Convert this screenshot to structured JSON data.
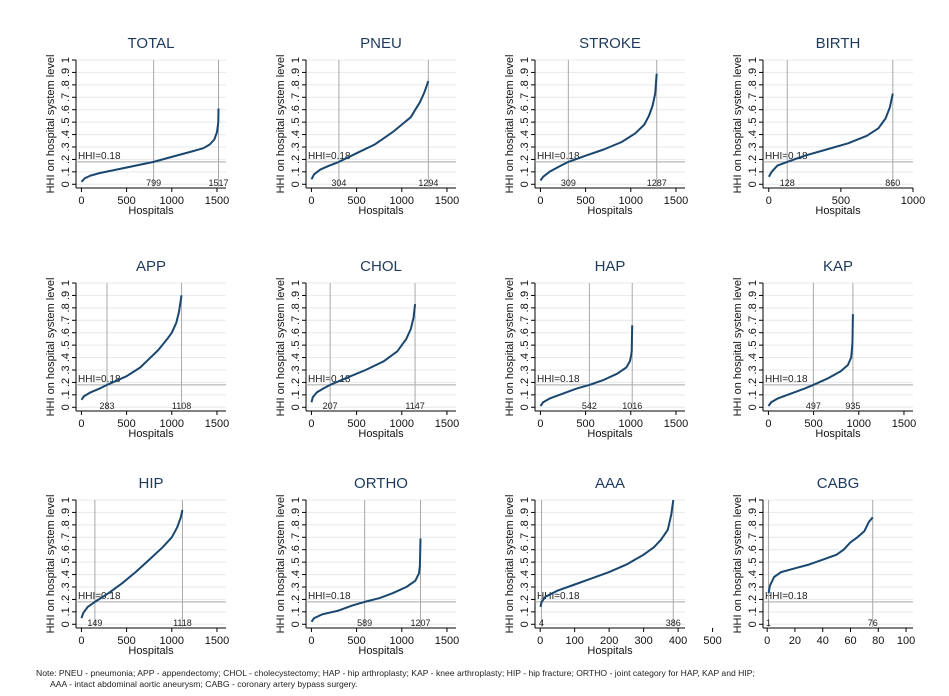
{
  "figure": {
    "note_line1": "Note: PNEU - pneumonia; APP - appendectomy; CHOL - cholecystectomy; HAP - hip arthroplasty; KAP - knee arthroplasty; HIP - hip fracture; ORTHO - joint category for HAP, KAP and HIP;",
    "note_line2": "AAA - intact abdominal aortic aneurysm; CABG - coronary artery bypass surgery."
  },
  "chart_data": [
    {
      "type": "line",
      "title": "TOTAL",
      "xlabel": "Hospitals",
      "ylabel": "HHI on hospital system level",
      "xlim": [
        -60,
        1600
      ],
      "ylim": [
        -0.03,
        1.0
      ],
      "xticks": [
        0,
        500,
        1000,
        1500
      ],
      "yticks": [
        0,
        0.1,
        0.2,
        0.3,
        0.4,
        0.5,
        0.6,
        0.7,
        0.8,
        0.9,
        1
      ],
      "ytick_labels": [
        "0",
        ".1",
        ".2",
        ".3",
        ".4",
        ".5",
        ".6",
        ".7",
        ".8",
        ".9",
        "1"
      ],
      "hline": {
        "y": 0.18,
        "label": "HHI=0.18"
      },
      "vlines": [
        {
          "x": 799,
          "label": "799"
        },
        {
          "x": 1517,
          "label": "1517"
        }
      ],
      "x": [
        1,
        40,
        100,
        200,
        400,
        600,
        799,
        1000,
        1200,
        1350,
        1420,
        1470,
        1500,
        1515,
        1517
      ],
      "y": [
        0.02,
        0.05,
        0.07,
        0.09,
        0.12,
        0.15,
        0.18,
        0.22,
        0.26,
        0.29,
        0.32,
        0.36,
        0.42,
        0.5,
        0.61
      ]
    },
    {
      "type": "line",
      "title": "PNEU",
      "xlabel": "Hospitals",
      "ylabel": "HHI on hospital system level",
      "xlim": [
        -60,
        1600
      ],
      "ylim": [
        -0.03,
        1.0
      ],
      "xticks": [
        0,
        500,
        1000,
        1500
      ],
      "yticks": [
        0,
        0.1,
        0.2,
        0.3,
        0.4,
        0.5,
        0.6,
        0.7,
        0.8,
        0.9,
        1
      ],
      "ytick_labels": [
        "0",
        ".1",
        ".2",
        ".3",
        ".4",
        ".5",
        ".6",
        ".7",
        ".8",
        ".9",
        "1"
      ],
      "hline": {
        "y": 0.18,
        "label": "HHI=0.18"
      },
      "vlines": [
        {
          "x": 304,
          "label": "304"
        },
        {
          "x": 1294,
          "label": "1294"
        }
      ],
      "x": [
        1,
        30,
        100,
        200,
        304,
        500,
        700,
        900,
        1000,
        1100,
        1150,
        1200,
        1250,
        1294
      ],
      "y": [
        0.04,
        0.08,
        0.12,
        0.15,
        0.18,
        0.25,
        0.32,
        0.42,
        0.48,
        0.54,
        0.6,
        0.66,
        0.74,
        0.83
      ]
    },
    {
      "type": "line",
      "title": "STROKE",
      "xlabel": "Hospitals",
      "ylabel": "HHI on hospital system level",
      "xlim": [
        -60,
        1600
      ],
      "ylim": [
        -0.03,
        1.0
      ],
      "xticks": [
        0,
        500,
        1000,
        1500
      ],
      "yticks": [
        0,
        0.1,
        0.2,
        0.3,
        0.4,
        0.5,
        0.6,
        0.7,
        0.8,
        0.9,
        1
      ],
      "ytick_labels": [
        "0",
        ".1",
        ".2",
        ".3",
        ".4",
        ".5",
        ".6",
        ".7",
        ".8",
        ".9",
        "1"
      ],
      "hline": {
        "y": 0.18,
        "label": "HHI=0.18"
      },
      "vlines": [
        {
          "x": 309,
          "label": "309"
        },
        {
          "x": 1287,
          "label": "1287"
        }
      ],
      "x": [
        1,
        30,
        100,
        200,
        309,
        500,
        700,
        900,
        1050,
        1150,
        1200,
        1240,
        1270,
        1287
      ],
      "y": [
        0.03,
        0.06,
        0.1,
        0.14,
        0.18,
        0.23,
        0.28,
        0.34,
        0.41,
        0.48,
        0.55,
        0.63,
        0.73,
        0.89
      ]
    },
    {
      "type": "line",
      "title": "BIRTH",
      "xlabel": "Hospitals",
      "ylabel": "HHI on hospital system level",
      "xlim": [
        -40,
        1000
      ],
      "ylim": [
        -0.03,
        1.0
      ],
      "xticks": [
        0,
        500,
        1000
      ],
      "yticks": [
        0,
        0.1,
        0.2,
        0.3,
        0.4,
        0.5,
        0.6,
        0.7,
        0.8,
        0.9,
        1
      ],
      "ytick_labels": [
        "0",
        ".1",
        ".2",
        ".3",
        ".4",
        ".5",
        ".6",
        ".7",
        ".8",
        ".9",
        "1"
      ],
      "hline": {
        "y": 0.18,
        "label": "HHI=0.18"
      },
      "vlines": [
        {
          "x": 128,
          "label": "128"
        },
        {
          "x": 860,
          "label": "860"
        }
      ],
      "x": [
        1,
        20,
        60,
        128,
        250,
        400,
        550,
        680,
        760,
        810,
        840,
        860
      ],
      "y": [
        0.06,
        0.1,
        0.15,
        0.18,
        0.23,
        0.28,
        0.33,
        0.39,
        0.45,
        0.53,
        0.62,
        0.73
      ]
    },
    {
      "type": "line",
      "title": "APP",
      "xlabel": "Hospitals",
      "ylabel": "HHI on hospital system level",
      "xlim": [
        -60,
        1600
      ],
      "ylim": [
        -0.03,
        1.0
      ],
      "xticks": [
        0,
        500,
        1000,
        1500
      ],
      "yticks": [
        0,
        0.1,
        0.2,
        0.3,
        0.4,
        0.5,
        0.6,
        0.7,
        0.8,
        0.9,
        1
      ],
      "ytick_labels": [
        "0",
        ".1",
        ".2",
        ".3",
        ".4",
        ".5",
        ".6",
        ".7",
        ".8",
        ".9",
        "1"
      ],
      "hline": {
        "y": 0.18,
        "label": "HHI=0.18"
      },
      "vlines": [
        {
          "x": 283,
          "label": "283"
        },
        {
          "x": 1108,
          "label": "1108"
        }
      ],
      "x": [
        1,
        30,
        100,
        200,
        283,
        500,
        650,
        750,
        850,
        950,
        1000,
        1050,
        1080,
        1108
      ],
      "y": [
        0.06,
        0.09,
        0.12,
        0.15,
        0.18,
        0.25,
        0.32,
        0.39,
        0.46,
        0.55,
        0.6,
        0.68,
        0.77,
        0.9
      ]
    },
    {
      "type": "line",
      "title": "CHOL",
      "xlabel": "Hospitals",
      "ylabel": "HHI on hospital system level",
      "xlim": [
        -60,
        1600
      ],
      "ylim": [
        -0.03,
        1.0
      ],
      "xticks": [
        0,
        500,
        1000,
        1500
      ],
      "yticks": [
        0,
        0.1,
        0.2,
        0.3,
        0.4,
        0.5,
        0.6,
        0.7,
        0.8,
        0.9,
        1
      ],
      "ytick_labels": [
        "0",
        ".1",
        ".2",
        ".3",
        ".4",
        ".5",
        ".6",
        ".7",
        ".8",
        ".9",
        "1"
      ],
      "hline": {
        "y": 0.18,
        "label": "HHI=0.18"
      },
      "vlines": [
        {
          "x": 207,
          "label": "207"
        },
        {
          "x": 1147,
          "label": "1147"
        }
      ],
      "x": [
        1,
        15,
        60,
        130,
        207,
        400,
        600,
        800,
        950,
        1050,
        1100,
        1130,
        1147
      ],
      "y": [
        0.04,
        0.08,
        0.12,
        0.15,
        0.18,
        0.24,
        0.3,
        0.37,
        0.45,
        0.55,
        0.63,
        0.72,
        0.83
      ]
    },
    {
      "type": "line",
      "title": "HAP",
      "xlabel": "Hospitals",
      "ylabel": "HHI on hospital system level",
      "xlim": [
        -60,
        1600
      ],
      "ylim": [
        -0.03,
        1.0
      ],
      "xticks": [
        0,
        500,
        1000,
        1500
      ],
      "yticks": [
        0,
        0.1,
        0.2,
        0.3,
        0.4,
        0.5,
        0.6,
        0.7,
        0.8,
        0.9,
        1
      ],
      "ytick_labels": [
        "0",
        ".1",
        ".2",
        ".3",
        ".4",
        ".5",
        ".6",
        ".7",
        ".8",
        ".9",
        "1"
      ],
      "hline": {
        "y": 0.18,
        "label": "HHI=0.18"
      },
      "vlines": [
        {
          "x": 542,
          "label": "542"
        },
        {
          "x": 1016,
          "label": "1016"
        }
      ],
      "x": [
        1,
        30,
        100,
        250,
        400,
        542,
        700,
        850,
        950,
        990,
        1005,
        1010,
        1016
      ],
      "y": [
        0.01,
        0.04,
        0.07,
        0.11,
        0.15,
        0.18,
        0.22,
        0.27,
        0.32,
        0.37,
        0.42,
        0.45,
        0.66
      ]
    },
    {
      "type": "line",
      "title": "KAP",
      "xlabel": "Hospitals",
      "ylabel": "HHI on hospital system level",
      "xlim": [
        -60,
        1600
      ],
      "ylim": [
        -0.03,
        1.0
      ],
      "xticks": [
        0,
        500,
        1000,
        1500
      ],
      "yticks": [
        0,
        0.1,
        0.2,
        0.3,
        0.4,
        0.5,
        0.6,
        0.7,
        0.8,
        0.9,
        1
      ],
      "ytick_labels": [
        "0",
        ".1",
        ".2",
        ".3",
        ".4",
        ".5",
        ".6",
        ".7",
        ".8",
        ".9",
        "1"
      ],
      "hline": {
        "y": 0.18,
        "label": "HHI=0.18"
      },
      "vlines": [
        {
          "x": 497,
          "label": "497"
        },
        {
          "x": 935,
          "label": "935"
        }
      ],
      "x": [
        1,
        30,
        100,
        250,
        400,
        497,
        650,
        800,
        880,
        915,
        925,
        930,
        935
      ],
      "y": [
        0.01,
        0.04,
        0.07,
        0.11,
        0.15,
        0.18,
        0.23,
        0.29,
        0.34,
        0.4,
        0.47,
        0.53,
        0.75
      ]
    },
    {
      "type": "line",
      "title": "HIP",
      "xlabel": "Hospitals",
      "ylabel": "HHI on hospital system level",
      "xlim": [
        -60,
        1600
      ],
      "ylim": [
        -0.03,
        1.0
      ],
      "xticks": [
        0,
        500,
        1000,
        1500
      ],
      "yticks": [
        0,
        0.1,
        0.2,
        0.3,
        0.4,
        0.5,
        0.6,
        0.7,
        0.8,
        0.9,
        1
      ],
      "ytick_labels": [
        "0",
        ".1",
        ".2",
        ".3",
        ".4",
        ".5",
        ".6",
        ".7",
        ".8",
        ".9",
        "1"
      ],
      "hline": {
        "y": 0.18,
        "label": "HHI=0.18"
      },
      "vlines": [
        {
          "x": 149,
          "label": "149"
        },
        {
          "x": 1118,
          "label": "1118"
        }
      ],
      "x": [
        1,
        20,
        70,
        149,
        300,
        450,
        600,
        750,
        900,
        1000,
        1060,
        1100,
        1118
      ],
      "y": [
        0.05,
        0.09,
        0.14,
        0.18,
        0.25,
        0.33,
        0.42,
        0.52,
        0.62,
        0.7,
        0.78,
        0.86,
        0.92
      ]
    },
    {
      "type": "line",
      "title": "ORTHO",
      "xlabel": "Hospitals",
      "ylabel": "HHI on hospital system level",
      "xlim": [
        -60,
        1600
      ],
      "ylim": [
        -0.03,
        1.0
      ],
      "xticks": [
        0,
        500,
        1000,
        1500
      ],
      "yticks": [
        0,
        0.1,
        0.2,
        0.3,
        0.4,
        0.5,
        0.6,
        0.7,
        0.8,
        0.9,
        1
      ],
      "ytick_labels": [
        "0",
        ".1",
        ".2",
        ".3",
        ".4",
        ".5",
        ".6",
        ".7",
        ".8",
        ".9",
        "1"
      ],
      "hline": {
        "y": 0.18,
        "label": "HHI=0.18"
      },
      "vlines": [
        {
          "x": 589,
          "label": "589"
        },
        {
          "x": 1207,
          "label": "1207"
        }
      ],
      "x": [
        1,
        30,
        120,
        300,
        450,
        589,
        750,
        900,
        1050,
        1150,
        1190,
        1200,
        1207
      ],
      "y": [
        0.02,
        0.05,
        0.08,
        0.11,
        0.15,
        0.18,
        0.21,
        0.25,
        0.3,
        0.35,
        0.41,
        0.47,
        0.69
      ]
    },
    {
      "type": "line",
      "title": "AAA",
      "xlabel": "Hospitals",
      "ylabel": "HHI on hospital system level",
      "xlim": [
        -15,
        420
      ],
      "ylim": [
        -0.03,
        1.0
      ],
      "xticks": [
        0,
        100,
        200,
        300,
        400,
        500
      ],
      "yticks": [
        0,
        0.1,
        0.2,
        0.3,
        0.4,
        0.5,
        0.6,
        0.7,
        0.8,
        0.9,
        1
      ],
      "ytick_labels": [
        "0",
        ".1",
        ".2",
        ".3",
        ".4",
        ".5",
        ".6",
        ".7",
        ".8",
        ".9",
        "1"
      ],
      "hline": {
        "y": 0.18,
        "label": "HHI=0.18"
      },
      "vlines": [
        {
          "x": 4,
          "label": "4"
        },
        {
          "x": 386,
          "label": "386"
        }
      ],
      "x": [
        1,
        4,
        15,
        50,
        100,
        150,
        200,
        250,
        300,
        330,
        350,
        370,
        380,
        386
      ],
      "y": [
        0.14,
        0.18,
        0.22,
        0.27,
        0.32,
        0.37,
        0.42,
        0.48,
        0.56,
        0.62,
        0.68,
        0.76,
        0.88,
        1.0
      ]
    },
    {
      "type": "line",
      "title": "CABG",
      "xlabel": "",
      "ylabel": "HHI on hospital system level",
      "xlim": [
        -3,
        105
      ],
      "ylim": [
        -0.03,
        1.0
      ],
      "xticks": [
        0,
        20,
        40,
        60,
        80,
        100
      ],
      "yticks": [
        0,
        0.1,
        0.2,
        0.3,
        0.4,
        0.5,
        0.6,
        0.7,
        0.8,
        0.9,
        1
      ],
      "ytick_labels": [
        "0",
        ".1",
        ".2",
        ".3",
        ".4",
        ".5",
        ".6",
        ".7",
        ".8",
        ".9",
        "1"
      ],
      "hline": {
        "y": 0.18,
        "label": "HHI=0.18"
      },
      "vlines": [
        {
          "x": 1,
          "label": "1"
        },
        {
          "x": 76,
          "label": "76"
        }
      ],
      "x": [
        1,
        2,
        5,
        10,
        20,
        30,
        40,
        50,
        55,
        60,
        65,
        70,
        73,
        76
      ],
      "y": [
        0.25,
        0.31,
        0.38,
        0.42,
        0.45,
        0.48,
        0.52,
        0.56,
        0.6,
        0.66,
        0.7,
        0.75,
        0.82,
        0.86
      ]
    }
  ]
}
